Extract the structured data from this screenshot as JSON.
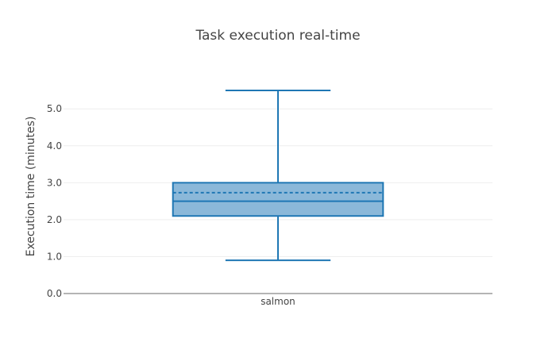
{
  "chart_data": {
    "type": "box",
    "title": "Task execution real-time",
    "xlabel": "",
    "ylabel": "Execution time (minutes)",
    "categories": [
      "salmon"
    ],
    "ylim": [
      0,
      5.8
    ],
    "yticks": [
      "0.0",
      "1.0",
      "2.0",
      "3.0",
      "4.0",
      "5.0"
    ],
    "ytick_values": [
      0,
      1,
      2,
      3,
      4,
      5
    ],
    "grid": true,
    "series": [
      {
        "category": "salmon",
        "min": 0.9,
        "q1": 2.1,
        "median": 2.5,
        "mean": 2.73,
        "q3": 3.0,
        "max": 5.5
      }
    ],
    "colors": {
      "box_fill": "#8bb8d9",
      "box_line": "#1f77b4",
      "grid": "#eeeeee",
      "axis": "#444444"
    }
  }
}
